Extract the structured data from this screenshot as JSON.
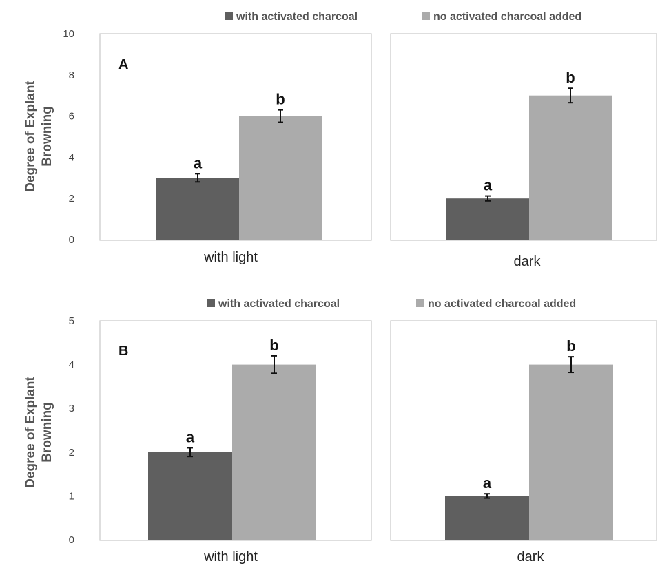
{
  "chart_data": [
    {
      "type": "bar",
      "panel_label": "A",
      "ylabel_line1": "Degree of Explant",
      "ylabel_line2": "Browning",
      "ylim": [
        0,
        10
      ],
      "yticks": [
        "0",
        "2",
        "4",
        "6",
        "8",
        "10"
      ],
      "legend": {
        "placement": "top-right",
        "entries": [
          "with activated charcoal",
          "no activated charcoal added"
        ]
      },
      "colors": [
        "#5f5f5f",
        "#ababab"
      ],
      "facets": [
        {
          "category": "with light",
          "series": [
            {
              "value": 3,
              "error": 0.2,
              "sig": "a"
            },
            {
              "value": 6,
              "error": 0.3,
              "sig": "b"
            }
          ]
        },
        {
          "category": "dark",
          "series": [
            {
              "value": 2,
              "error": 0.12,
              "sig": "a"
            },
            {
              "value": 7,
              "error": 0.35,
              "sig": "b"
            }
          ]
        }
      ]
    },
    {
      "type": "bar",
      "panel_label": "B",
      "ylabel_line1": "Degree of Explant",
      "ylabel_line2": "Browning",
      "ylim": [
        0,
        5
      ],
      "yticks": [
        "0",
        "1",
        "2",
        "3",
        "4",
        "5"
      ],
      "legend": {
        "placement": "top-right",
        "entries": [
          "with activated charcoal",
          "no activated charcoal added"
        ]
      },
      "colors": [
        "#5f5f5f",
        "#ababab"
      ],
      "facets": [
        {
          "category": "with light",
          "series": [
            {
              "value": 2,
              "error": 0.1,
              "sig": "a"
            },
            {
              "value": 4,
              "error": 0.2,
              "sig": "b"
            }
          ]
        },
        {
          "category": "dark",
          "series": [
            {
              "value": 1,
              "error": 0.05,
              "sig": "a"
            },
            {
              "value": 4,
              "error": 0.18,
              "sig": "b"
            }
          ]
        }
      ]
    }
  ]
}
